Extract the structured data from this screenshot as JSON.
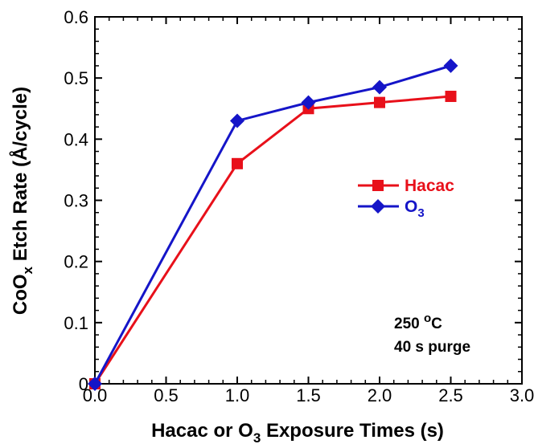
{
  "chart_data": {
    "type": "line",
    "title": "",
    "xlabel_parts": [
      "Hacac or O",
      "3",
      " Exposure Times (s)"
    ],
    "ylabel_parts": [
      "CoO",
      "x",
      " Etch Rate (Å/cycle)"
    ],
    "xlim": [
      0,
      3
    ],
    "ylim": [
      0,
      0.6
    ],
    "x_ticks": [
      "0.0",
      "0.5",
      "1.0",
      "1.5",
      "2.0",
      "2.5",
      "3.0"
    ],
    "y_ticks": [
      "0",
      "0.1",
      "0.2",
      "0.3",
      "0.4",
      "0.5",
      "0.6"
    ],
    "grid": false,
    "legend_position": "right-middle",
    "series": [
      {
        "name": "Hacac",
        "color": "#e8101a",
        "marker": "square",
        "points": [
          [
            0,
            0
          ],
          [
            1.0,
            0.36
          ],
          [
            1.5,
            0.45
          ],
          [
            2.0,
            0.46
          ],
          [
            2.5,
            0.47
          ]
        ]
      },
      {
        "name": "O3",
        "label_parts": [
          "O",
          "3"
        ],
        "color": "#1515c8",
        "marker": "diamond",
        "points": [
          [
            0,
            0
          ],
          [
            1.0,
            0.43
          ],
          [
            1.5,
            0.46
          ],
          [
            2.0,
            0.485
          ],
          [
            2.5,
            0.52
          ]
        ]
      }
    ],
    "annotations": {
      "temperature_parts": [
        "250 ",
        "o",
        "C"
      ],
      "purge": "40 s purge"
    }
  }
}
